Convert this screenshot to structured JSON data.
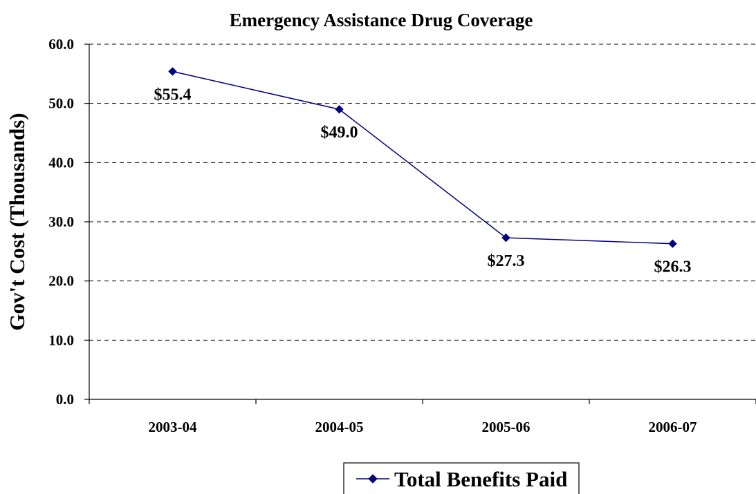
{
  "chart_data": {
    "type": "line",
    "title": "Emergency Assistance Drug Coverage",
    "xlabel": "",
    "ylabel": "Gov't Cost (Thousands)",
    "categories": [
      "2003-04",
      "2004-05",
      "2005-06",
      "2006-07"
    ],
    "ylim": [
      0,
      60
    ],
    "yticks": [
      0,
      10,
      20,
      30,
      40,
      50,
      60
    ],
    "ytick_labels": [
      "0.0",
      "10.0",
      "20.0",
      "30.0",
      "40.0",
      "50.0",
      "60.0"
    ],
    "grid": true,
    "legend_position": "bottom",
    "series": [
      {
        "name": "Total Benefits Paid",
        "values": [
          55.4,
          49.0,
          27.3,
          26.3
        ],
        "data_labels": [
          "$55.4",
          "$49.0",
          "$27.3",
          "$26.3"
        ],
        "color": "#000080",
        "marker": "diamond"
      }
    ]
  }
}
